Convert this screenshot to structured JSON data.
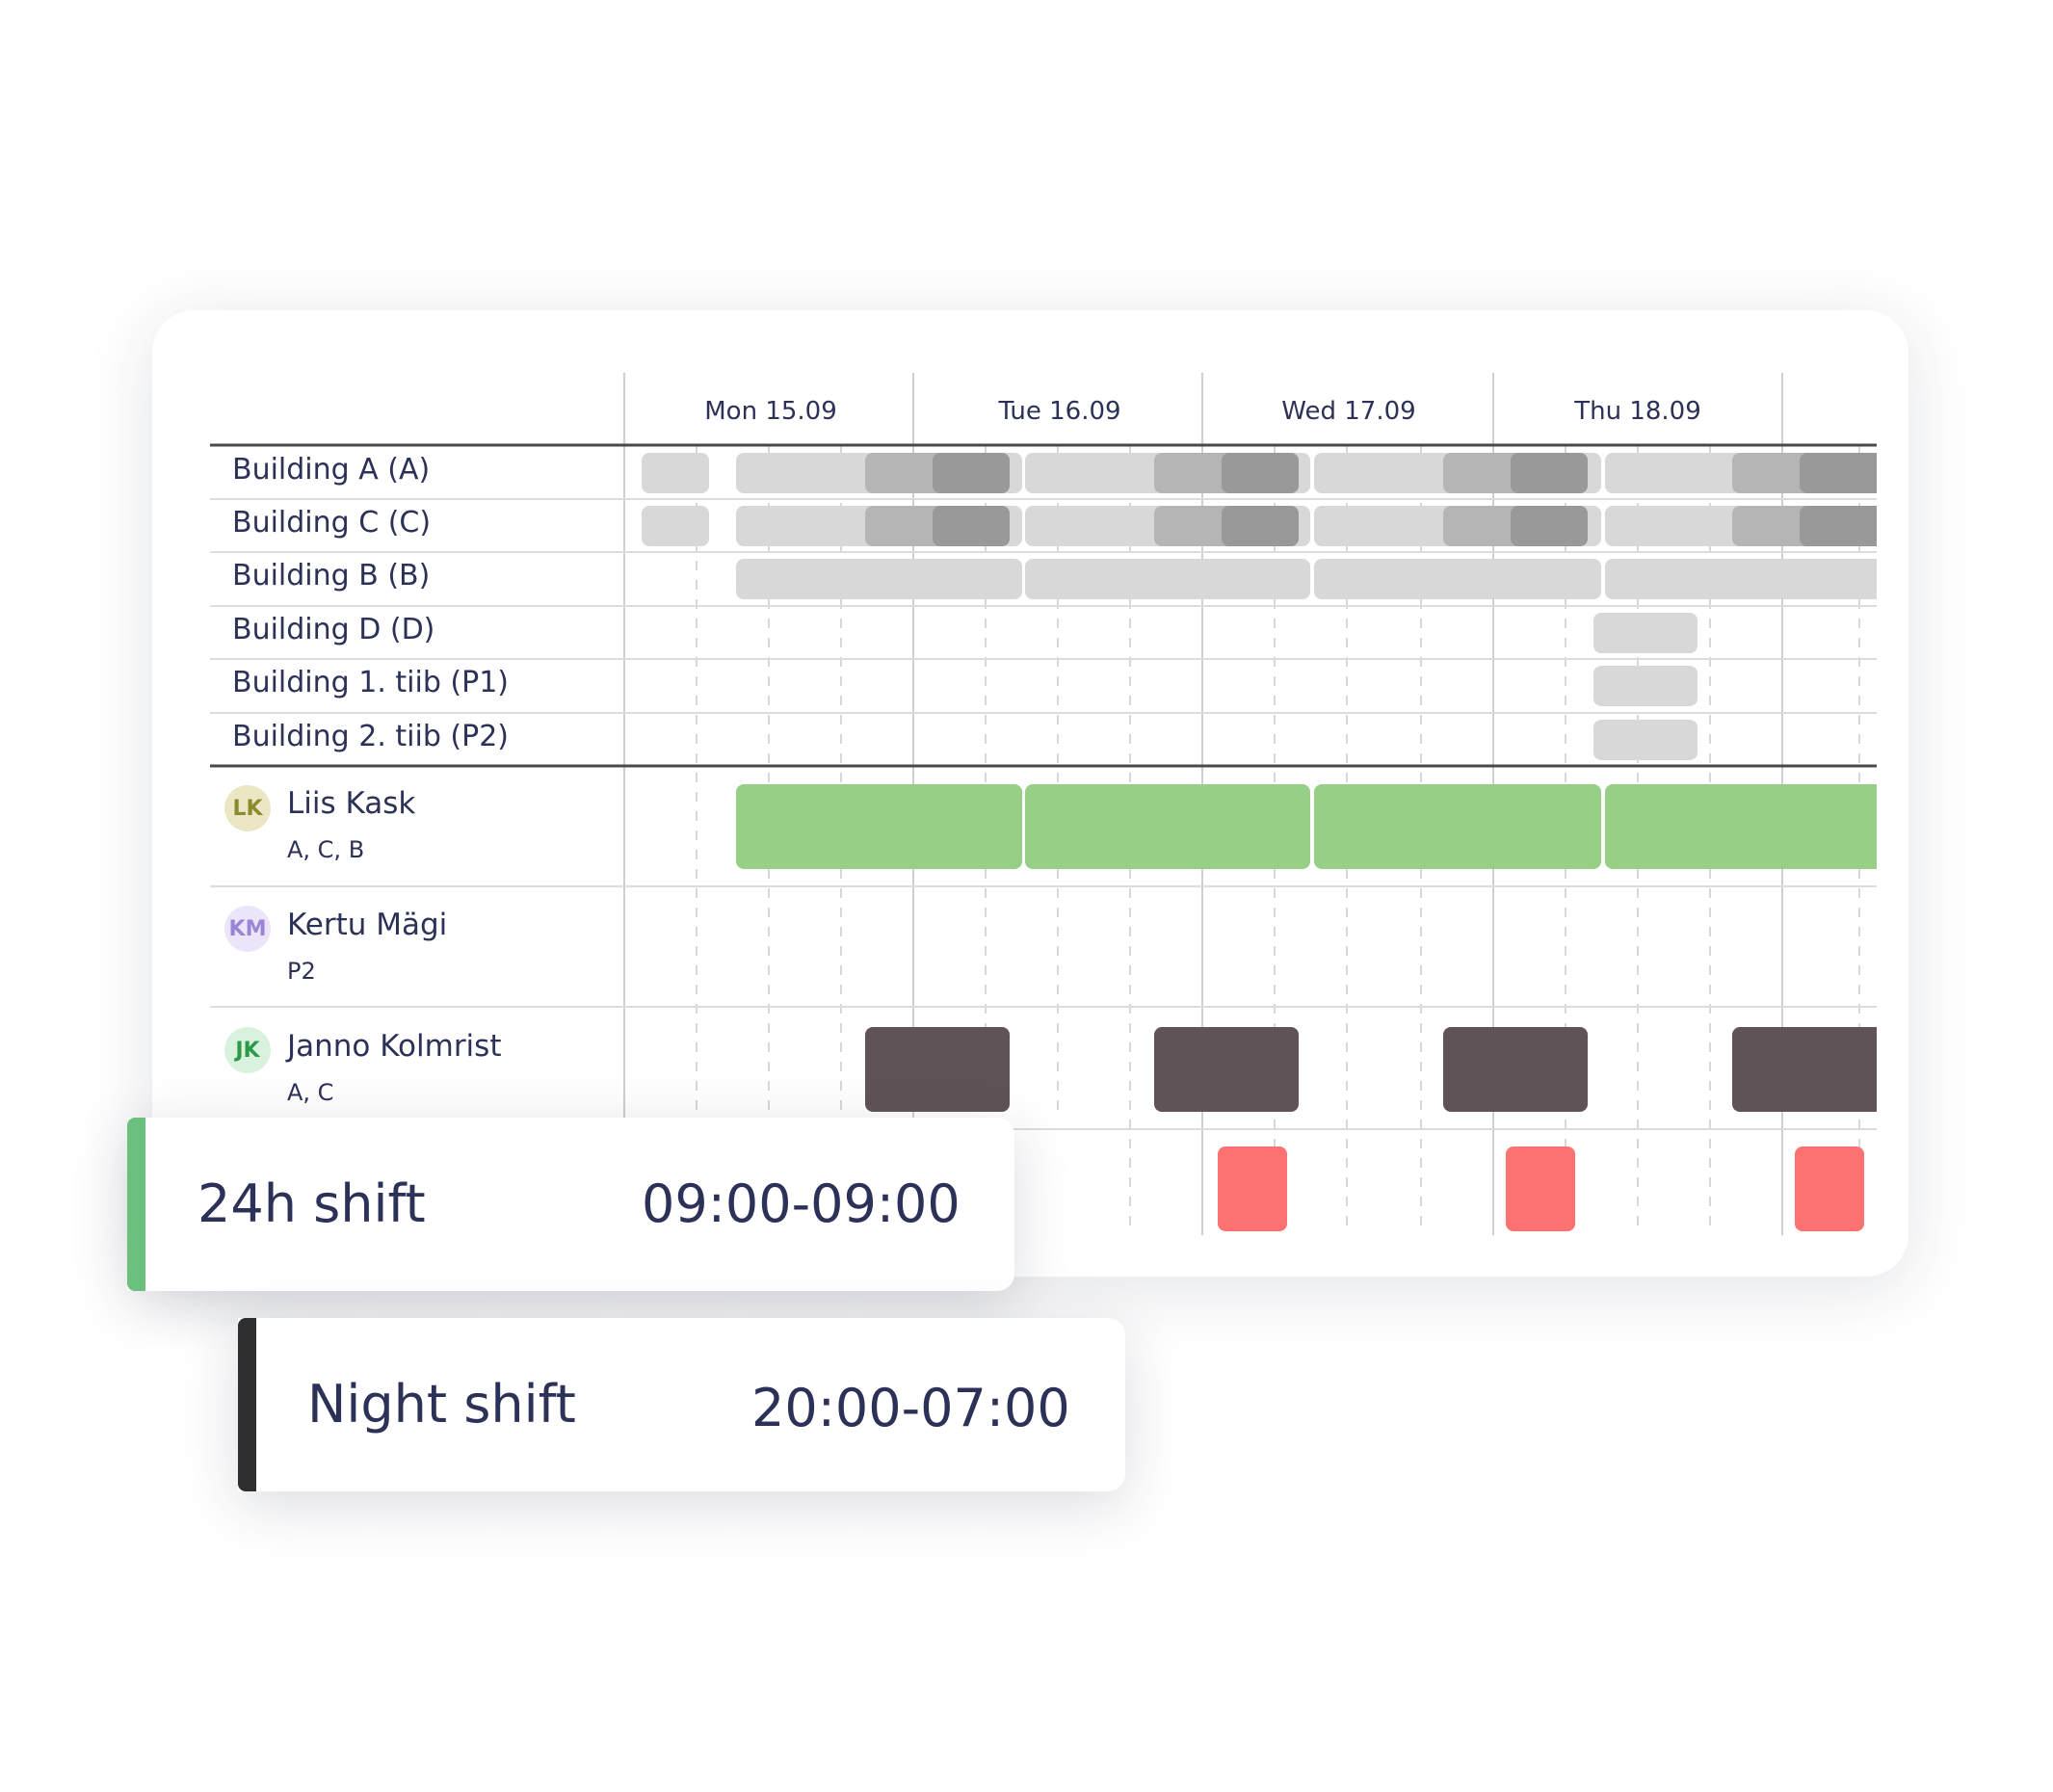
{
  "schedule": {
    "days": [
      "Mon 15.09",
      "Tue 16.09",
      "Wed 17.09",
      "Thu 18.09"
    ],
    "sites": [
      {
        "label": "Building A (A)"
      },
      {
        "label": "Building C (C)"
      },
      {
        "label": "Building B (B)"
      },
      {
        "label": "Building D (D)"
      },
      {
        "label": "Building 1. tiib (P1)"
      },
      {
        "label": "Building 2. tiib (P2)"
      }
    ],
    "people": [
      {
        "initials": "LK",
        "name": "Liis Kask",
        "sites": "A, C, B",
        "avatar_bg": "#ebe7c4",
        "avatar_fg": "#8b8a2c"
      },
      {
        "initials": "KM",
        "name": "Kertu Mägi",
        "sites": "P2",
        "avatar_bg": "#ece5fa",
        "avatar_fg": "#9a84d6"
      },
      {
        "initials": "JK",
        "name": "Janno Kolmrist",
        "sites": "A, C",
        "avatar_bg": "#d9f2dd",
        "avatar_fg": "#2e9a48"
      }
    ]
  },
  "shifts": [
    {
      "name": "24h shift",
      "time": "09:00-09:00",
      "color": "#6cc07e"
    },
    {
      "name": "Night shift",
      "time": "20:00-07:00",
      "color": "#2f2f2f"
    }
  ],
  "colors": {
    "day_shift": "#97cf87",
    "night_shift": "#5f5357",
    "alert": "#fb7270",
    "coverage_light": "#d8d8d8",
    "coverage_mid": "#b5b5b5",
    "coverage_dark": "#999999"
  }
}
